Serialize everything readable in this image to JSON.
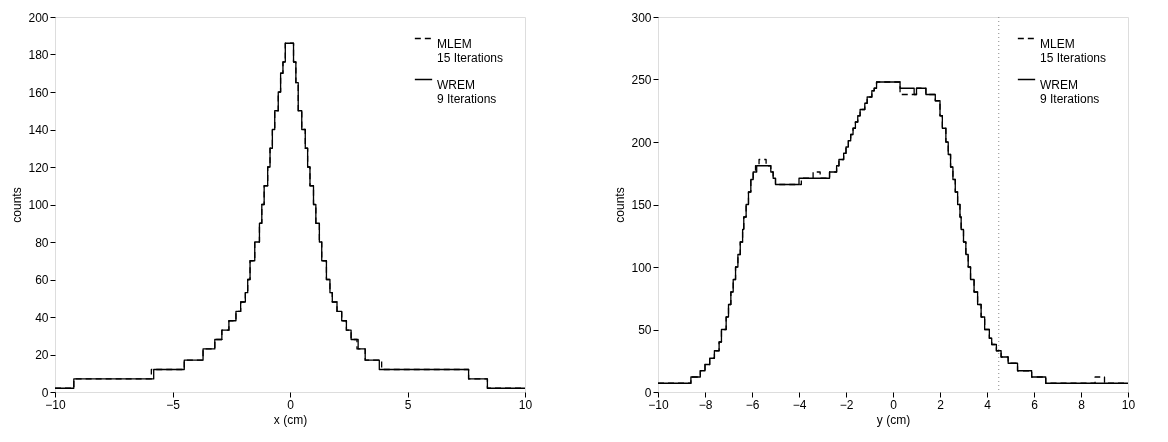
{
  "chart_data": [
    {
      "type": "step",
      "xlabel": "x (cm)",
      "ylabel": "counts",
      "xlim": [
        -10,
        10
      ],
      "ylim": [
        0,
        200
      ],
      "xticks": [
        -10,
        -5,
        0,
        5,
        10
      ],
      "yticks": [
        0,
        20,
        40,
        60,
        80,
        100,
        120,
        140,
        160,
        180,
        200
      ],
      "grid": false,
      "legend": "top right",
      "series": [
        {
          "name": "MLEM\n15 Iterations",
          "color": "#000000",
          "line_style": "dashed",
          "x": [
            -10,
            -9.2,
            -5.9,
            -4.5,
            -3.7,
            -3.2,
            -2.9,
            -2.6,
            -2.3,
            -2.1,
            -1.9,
            -1.8,
            -1.7,
            -1.5,
            -1.3,
            -1.2,
            -1.1,
            -0.95,
            -0.85,
            -0.75,
            -0.65,
            -0.5,
            -0.4,
            -0.3,
            -0.2,
            -0.1,
            0.15,
            0.25,
            0.35,
            0.5,
            0.65,
            0.75,
            0.85,
            1.0,
            1.1,
            1.25,
            1.35,
            1.55,
            1.7,
            1.8,
            2.0,
            2.2,
            2.4,
            2.6,
            2.85,
            3.2,
            3.9,
            4.6,
            7.6,
            8.4,
            10
          ],
          "values": [
            2,
            7,
            12,
            17,
            23,
            28,
            33,
            38,
            43,
            48,
            53,
            60,
            70,
            80,
            90,
            100,
            110,
            120,
            130,
            140,
            150,
            160,
            170,
            176,
            186,
            186,
            176,
            165,
            150,
            140,
            130,
            120,
            110,
            100,
            90,
            80,
            70,
            60,
            53,
            48,
            43,
            38,
            33,
            28,
            23,
            17,
            12,
            12,
            7,
            2,
            2
          ]
        },
        {
          "name": "WREM\n9 Iterations",
          "color": "#000000",
          "line_style": "solid",
          "x": [
            -10,
            -9.2,
            -5.8,
            -4.5,
            -3.7,
            -3.2,
            -2.9,
            -2.6,
            -2.3,
            -2.1,
            -1.9,
            -1.8,
            -1.7,
            -1.5,
            -1.3,
            -1.2,
            -1.1,
            -0.95,
            -0.85,
            -0.75,
            -0.65,
            -0.5,
            -0.4,
            -0.3,
            -0.2,
            -0.1,
            0.15,
            0.25,
            0.35,
            0.5,
            0.65,
            0.75,
            0.85,
            1.0,
            1.1,
            1.25,
            1.35,
            1.55,
            1.7,
            1.8,
            2.0,
            2.2,
            2.4,
            2.6,
            2.9,
            3.2,
            3.8,
            4.6,
            7.6,
            8.4,
            10
          ],
          "values": [
            2,
            7,
            12,
            17,
            23,
            28,
            33,
            38,
            43,
            48,
            53,
            60,
            70,
            80,
            90,
            100,
            110,
            120,
            130,
            140,
            150,
            160,
            170,
            176,
            186,
            186,
            176,
            165,
            150,
            140,
            130,
            120,
            110,
            100,
            90,
            80,
            70,
            60,
            53,
            48,
            43,
            38,
            33,
            28,
            23,
            17,
            12,
            12,
            7,
            2,
            2
          ]
        }
      ]
    },
    {
      "type": "step",
      "xlabel": "y (cm)",
      "ylabel": "counts",
      "xlim": [
        -10,
        10
      ],
      "ylim": [
        0,
        300
      ],
      "xticks": [
        -10,
        -8,
        -6,
        -4,
        -2,
        0,
        2,
        4,
        6,
        8,
        10
      ],
      "yticks": [
        0,
        50,
        100,
        150,
        200,
        250,
        300
      ],
      "grid": false,
      "legend": "top right",
      "ref_lines": [
        {
          "axis": "x",
          "value": 4.5,
          "color": "#888888",
          "line_style": "dotted"
        }
      ],
      "series": [
        {
          "name": "MLEM\n15 Iterations",
          "color": "#000000",
          "line_style": "dashed",
          "x": [
            -10,
            -8.6,
            -8.2,
            -8.0,
            -7.8,
            -7.6,
            -7.4,
            -7.3,
            -7.1,
            -7.0,
            -6.9,
            -6.8,
            -6.7,
            -6.6,
            -6.5,
            -6.4,
            -6.35,
            -6.25,
            -6.15,
            -6.05,
            -5.95,
            -5.85,
            -5.7,
            -5.4,
            -5.2,
            -5.1,
            -5.0,
            -4.8,
            -3.9,
            -3.4,
            -3.1,
            -2.7,
            -2.4,
            -2.3,
            -2.1,
            -2.0,
            -1.9,
            -1.8,
            -1.7,
            -1.6,
            -1.5,
            -1.4,
            -1.2,
            -1.1,
            -0.9,
            -0.8,
            -0.7,
            0.3,
            1.0,
            1.4,
            1.8,
            2.0,
            2.1,
            2.25,
            2.35,
            2.45,
            2.55,
            2.65,
            2.75,
            2.85,
            2.9,
            3.0,
            3.1,
            3.2,
            3.3,
            3.45,
            3.6,
            3.75,
            3.9,
            4.1,
            4.2,
            4.4,
            4.6,
            4.9,
            5.3,
            5.9,
            6.5,
            8.6,
            9.0,
            10
          ],
          "values": [
            7,
            12,
            17,
            22,
            27,
            33,
            40,
            50,
            60,
            70,
            80,
            90,
            100,
            110,
            120,
            130,
            140,
            150,
            160,
            170,
            176,
            181,
            186,
            181,
            176,
            171,
            166,
            166,
            171,
            176,
            171,
            176,
            181,
            186,
            191,
            196,
            201,
            206,
            211,
            216,
            221,
            226,
            231,
            236,
            241,
            243,
            248,
            238,
            243,
            238,
            233,
            221,
            211,
            200,
            190,
            180,
            170,
            160,
            150,
            140,
            130,
            120,
            110,
            100,
            90,
            80,
            70,
            60,
            50,
            43,
            38,
            33,
            28,
            23,
            17,
            12,
            7,
            12,
            7,
            7
          ]
        },
        {
          "name": "WREM\n9 Iterations",
          "color": "#000000",
          "line_style": "solid",
          "x": [
            -10,
            -8.6,
            -8.2,
            -8.0,
            -7.8,
            -7.6,
            -7.4,
            -7.3,
            -7.1,
            -7.0,
            -6.9,
            -6.8,
            -6.7,
            -6.6,
            -6.5,
            -6.4,
            -6.35,
            -6.25,
            -6.15,
            -6.05,
            -5.95,
            -5.85,
            -5.8,
            -5.2,
            -5.1,
            -5.0,
            -4.8,
            -4.0,
            -2.7,
            -2.5,
            -2.4,
            -2.3,
            -2.1,
            -2.0,
            -1.9,
            -1.8,
            -1.7,
            -1.6,
            -1.5,
            -1.4,
            -1.2,
            -1.1,
            -0.9,
            -0.8,
            -0.7,
            0.3,
            0.9,
            1.0,
            1.4,
            1.8,
            2.0,
            2.1,
            2.25,
            2.35,
            2.45,
            2.55,
            2.65,
            2.75,
            2.85,
            2.9,
            3.0,
            3.1,
            3.2,
            3.3,
            3.45,
            3.6,
            3.75,
            3.9,
            4.1,
            4.2,
            4.4,
            4.6,
            4.9,
            5.3,
            5.9,
            6.5,
            10
          ],
          "values": [
            7,
            12,
            17,
            22,
            27,
            33,
            40,
            50,
            60,
            70,
            80,
            90,
            100,
            110,
            120,
            130,
            140,
            150,
            160,
            170,
            176,
            176,
            181,
            176,
            171,
            166,
            166,
            171,
            176,
            176,
            181,
            186,
            191,
            196,
            201,
            206,
            211,
            216,
            221,
            226,
            231,
            236,
            241,
            243,
            248,
            243,
            238,
            243,
            238,
            233,
            221,
            211,
            200,
            190,
            180,
            170,
            160,
            150,
            140,
            130,
            120,
            110,
            100,
            90,
            80,
            70,
            60,
            50,
            43,
            38,
            33,
            28,
            23,
            17,
            12,
            7,
            7
          ]
        }
      ]
    }
  ]
}
